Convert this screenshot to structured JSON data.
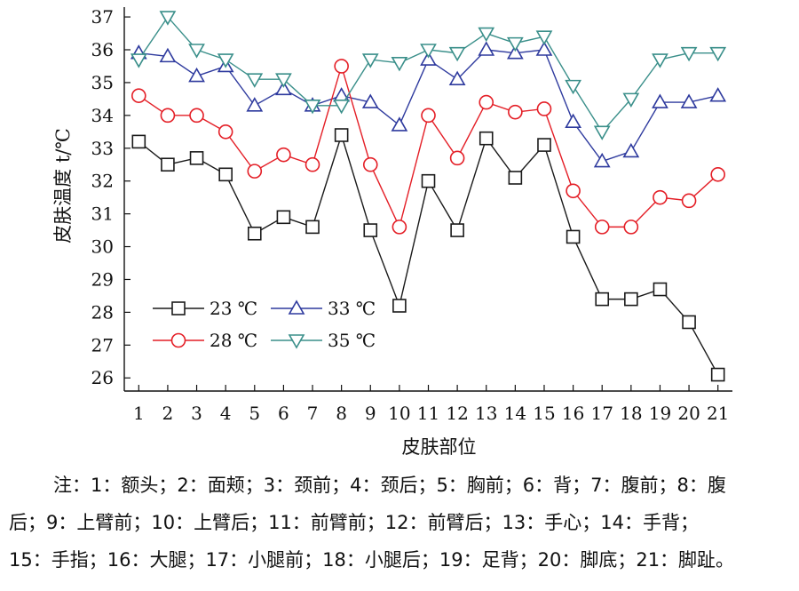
{
  "chart_data": {
    "type": "line",
    "title": "",
    "xlabel": "皮肤部位",
    "ylabel": "皮肤温度 t/℃",
    "categories": [
      "1",
      "2",
      "3",
      "4",
      "5",
      "6",
      "7",
      "8",
      "9",
      "10",
      "11",
      "12",
      "13",
      "14",
      "15",
      "16",
      "17",
      "18",
      "19",
      "20",
      "21"
    ],
    "xlim": [
      0.5,
      21.5
    ],
    "ylim": [
      25.6,
      37.3
    ],
    "yticks": [
      26,
      27,
      28,
      29,
      30,
      31,
      32,
      33,
      34,
      35,
      36,
      37
    ],
    "legend_position": "bottom-left",
    "series": [
      {
        "name": "23 ℃",
        "marker": "square",
        "color": "#1a1a1a",
        "values": [
          33.2,
          32.5,
          32.7,
          32.2,
          30.4,
          30.9,
          30.6,
          33.4,
          30.5,
          28.2,
          32.0,
          30.5,
          33.3,
          32.1,
          33.1,
          30.3,
          28.4,
          28.4,
          28.7,
          27.7,
          26.1
        ]
      },
      {
        "name": "33 ℃",
        "marker": "triangle-up",
        "color": "#2e3a9e",
        "values": [
          35.9,
          35.8,
          35.2,
          35.5,
          34.3,
          34.8,
          34.3,
          34.6,
          34.4,
          33.7,
          35.7,
          35.1,
          36.0,
          35.9,
          36.0,
          33.8,
          32.6,
          32.9,
          34.4,
          34.4,
          34.6
        ]
      },
      {
        "name": "28 ℃",
        "marker": "circle",
        "color": "#e41e26",
        "values": [
          34.6,
          34.0,
          34.0,
          33.5,
          32.3,
          32.8,
          32.5,
          35.5,
          32.5,
          30.6,
          34.0,
          32.7,
          34.4,
          34.1,
          34.2,
          31.7,
          30.6,
          30.6,
          31.5,
          31.4,
          32.2
        ]
      },
      {
        "name": "35 ℃",
        "marker": "triangle-down",
        "color": "#3a8f8a",
        "values": [
          35.7,
          37.0,
          36.0,
          35.7,
          35.1,
          35.1,
          34.3,
          34.3,
          35.7,
          35.6,
          36.0,
          35.9,
          36.5,
          36.2,
          36.4,
          34.9,
          33.5,
          34.5,
          35.7,
          35.9,
          35.9
        ]
      }
    ]
  },
  "note": {
    "line1": "注：1：额头；2：面颊；3：颈前；4：颈后；5：胸前；6：背；7：腹前；8：腹",
    "line2": "后；9：上臂前；10：上臂后；11：前臂前；12：前臂后；13：手心；14：手背；",
    "line3": "15：手指；16：大腿；17：小腿前；18：小腿后；19：足背；20：脚底；21：脚趾。"
  }
}
